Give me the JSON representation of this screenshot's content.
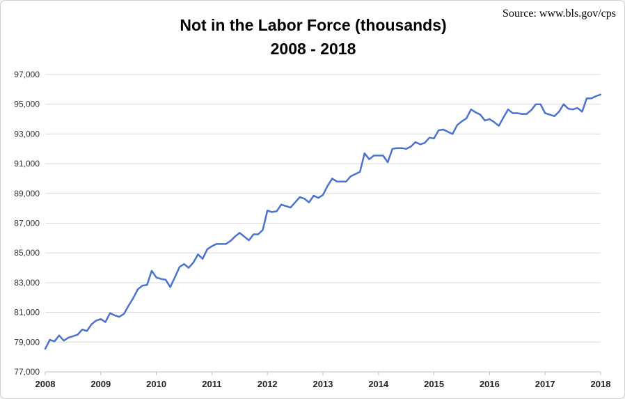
{
  "chart_data": {
    "type": "line",
    "title": "Not in the Labor Force (thousands)",
    "subtitle": "2008 - 2018",
    "source": "Source: www.bls.gov/cps",
    "xlabel": "",
    "ylabel": "",
    "x_ticks": [
      "2008",
      "2009",
      "2010",
      "2011",
      "2012",
      "2013",
      "2014",
      "2015",
      "2016",
      "2017",
      "2018"
    ],
    "xlim": [
      2008,
      2018
    ],
    "ylim": [
      77000,
      97000
    ],
    "y_ticks": [
      77000,
      79000,
      81000,
      83000,
      85000,
      87000,
      89000,
      91000,
      93000,
      95000,
      97000
    ],
    "y_tick_labels": [
      "77,000",
      "79,000",
      "81,000",
      "83,000",
      "85,000",
      "87,000",
      "89,000",
      "91,000",
      "93,000",
      "95,000",
      "97,000"
    ],
    "grid": true,
    "series": [
      {
        "color": "#4a72d0",
        "x": [
          2008.0,
          2008.083,
          2008.167,
          2008.25,
          2008.333,
          2008.417,
          2008.5,
          2008.583,
          2008.667,
          2008.75,
          2008.833,
          2008.917,
          2009.0,
          2009.083,
          2009.167,
          2009.25,
          2009.333,
          2009.417,
          2009.5,
          2009.583,
          2009.667,
          2009.75,
          2009.833,
          2009.917,
          2010.0,
          2010.083,
          2010.167,
          2010.25,
          2010.333,
          2010.417,
          2010.5,
          2010.583,
          2010.667,
          2010.75,
          2010.833,
          2010.917,
          2011.0,
          2011.083,
          2011.167,
          2011.25,
          2011.333,
          2011.417,
          2011.5,
          2011.583,
          2011.667,
          2011.75,
          2011.833,
          2011.917,
          2012.0,
          2012.083,
          2012.167,
          2012.25,
          2012.333,
          2012.417,
          2012.5,
          2012.583,
          2012.667,
          2012.75,
          2012.833,
          2012.917,
          2013.0,
          2013.083,
          2013.167,
          2013.25,
          2013.333,
          2013.417,
          2013.5,
          2013.583,
          2013.667,
          2013.75,
          2013.833,
          2013.917,
          2014.0,
          2014.083,
          2014.167,
          2014.25,
          2014.333,
          2014.417,
          2014.5,
          2014.583,
          2014.667,
          2014.75,
          2014.833,
          2014.917,
          2015.0,
          2015.083,
          2015.167,
          2015.25,
          2015.333,
          2015.417,
          2015.5,
          2015.583,
          2015.667,
          2015.75,
          2015.833,
          2015.917,
          2016.0,
          2016.083,
          2016.167,
          2016.25,
          2016.333,
          2016.417,
          2016.5,
          2016.583,
          2016.667,
          2016.75,
          2016.833,
          2016.917,
          2017.0,
          2017.083,
          2017.167,
          2017.25,
          2017.333,
          2017.417,
          2017.5,
          2017.583,
          2017.667,
          2017.75,
          2017.833,
          2017.917,
          2018.0
        ],
        "values": [
          78550,
          79150,
          79050,
          79450,
          79100,
          79300,
          79400,
          79500,
          79850,
          79750,
          80200,
          80450,
          80550,
          80350,
          80950,
          80800,
          80700,
          80900,
          81450,
          81950,
          82550,
          82800,
          82850,
          83800,
          83350,
          83250,
          83200,
          82700,
          83350,
          84050,
          84250,
          84000,
          84350,
          84900,
          84600,
          85250,
          85450,
          85600,
          85600,
          85600,
          85800,
          86100,
          86350,
          86100,
          85850,
          86250,
          86250,
          86550,
          87850,
          87750,
          87800,
          88250,
          88150,
          88050,
          88400,
          88750,
          88650,
          88400,
          88850,
          88700,
          88900,
          89500,
          90000,
          89800,
          89800,
          89800,
          90150,
          90300,
          90450,
          91700,
          91300,
          91550,
          91550,
          91550,
          91100,
          92000,
          92050,
          92050,
          92000,
          92150,
          92450,
          92300,
          92400,
          92750,
          92700,
          93250,
          93300,
          93150,
          93000,
          93600,
          93850,
          94050,
          94650,
          94450,
          94300,
          93900,
          94000,
          93800,
          93550,
          94100,
          94650,
          94400,
          94400,
          94350,
          94350,
          94600,
          95000,
          95000,
          94400,
          94300,
          94200,
          94500,
          95000,
          94700,
          94650,
          94750,
          94500,
          95400,
          95400,
          95550,
          95650
        ]
      }
    ]
  }
}
